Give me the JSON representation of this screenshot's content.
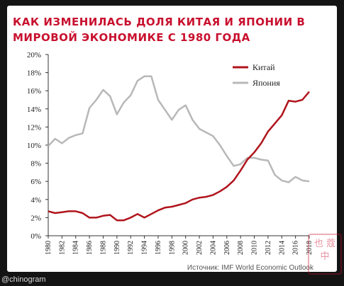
{
  "title": "КАК ИЗМЕНИЛАСЬ ДОЛЯ КИТАЯ И ЯПОНИИ В МИРОВОЙ ЭКОНОМИКЕ С 1980 ГОДА",
  "source": "Источник: IMF World Economic Outlook",
  "handle": "@chinogram",
  "stamp": "也 蔻 中",
  "colors": {
    "china": "#b0141c",
    "japan": "#b8b8b8",
    "title": "#c8102e"
  },
  "chart_data": {
    "type": "line",
    "title": "КАК ИЗМЕНИЛАСЬ ДОЛЯ КИТАЯ И ЯПОНИИ В МИРОВОЙ ЭКОНОМИКЕ С 1980 ГОДА",
    "xlabel": "",
    "ylabel": "",
    "ylim": [
      0,
      20
    ],
    "yticks": [
      "0%",
      "2%",
      "4%",
      "6%",
      "8%",
      "10%",
      "12%",
      "14%",
      "16%",
      "18%",
      "20%"
    ],
    "xticks": [
      "1980",
      "1982",
      "1984",
      "1986",
      "1988",
      "1990",
      "1992",
      "1994",
      "1996",
      "1998",
      "2000",
      "2002",
      "2004",
      "2006",
      "2008",
      "2010",
      "2012",
      "2014",
      "2016",
      "2018"
    ],
    "legend_position": "top-right",
    "grid": false,
    "x": [
      1980,
      1981,
      1982,
      1983,
      1984,
      1985,
      1986,
      1987,
      1988,
      1989,
      1990,
      1991,
      1992,
      1993,
      1994,
      1995,
      1996,
      1997,
      1998,
      1999,
      2000,
      2001,
      2002,
      2003,
      2004,
      2005,
      2006,
      2007,
      2008,
      2009,
      2010,
      2011,
      2012,
      2013,
      2014,
      2015,
      2016,
      2017,
      2018
    ],
    "series": [
      {
        "name": "Китай",
        "values": [
          2.7,
          2.5,
          2.6,
          2.7,
          2.7,
          2.5,
          2.0,
          2.0,
          2.2,
          2.3,
          1.7,
          1.7,
          2.0,
          2.4,
          2.0,
          2.4,
          2.8,
          3.1,
          3.2,
          3.4,
          3.6,
          4.0,
          4.2,
          4.3,
          4.5,
          4.9,
          5.4,
          6.1,
          7.2,
          8.4,
          9.2,
          10.2,
          11.5,
          12.4,
          13.3,
          14.9,
          14.8,
          15.0,
          15.9
        ]
      },
      {
        "name": "Япония",
        "values": [
          9.9,
          10.7,
          10.2,
          10.8,
          11.1,
          11.3,
          14.1,
          15.0,
          16.1,
          15.4,
          13.4,
          14.7,
          15.5,
          17.1,
          17.6,
          17.6,
          15.0,
          13.9,
          12.8,
          13.9,
          14.4,
          12.8,
          11.8,
          11.4,
          11.0,
          10.0,
          8.8,
          7.7,
          7.9,
          8.6,
          8.6,
          8.4,
          8.3,
          6.7,
          6.1,
          5.9,
          6.5,
          6.1,
          6.0
        ]
      }
    ]
  }
}
